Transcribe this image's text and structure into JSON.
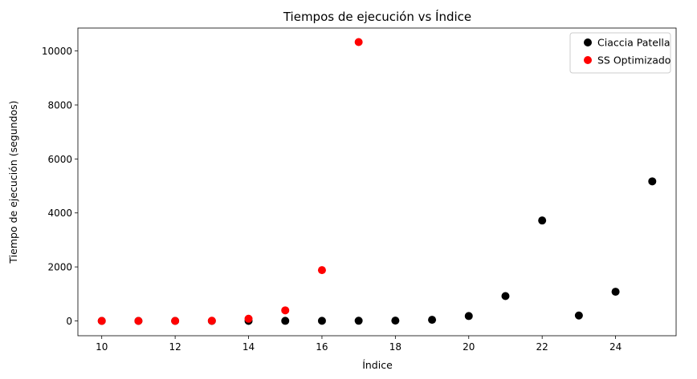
{
  "chart_data": {
    "type": "scatter",
    "title": "Tiempos de ejecución vs Índice",
    "xlabel": "Índice",
    "ylabel": "Tiempo de ejecución (segundos)",
    "xlim": [
      9.35,
      25.65
    ],
    "ylim": [
      -550,
      10850
    ],
    "xticks": [
      10,
      12,
      14,
      16,
      18,
      20,
      22,
      24
    ],
    "yticks": [
      0,
      2000,
      4000,
      6000,
      8000,
      10000
    ],
    "legend_position": "upper right",
    "grid": false,
    "series": [
      {
        "name": "Ciaccia Patella",
        "color": "#000000",
        "x": [
          10,
          11,
          12,
          13,
          14,
          15,
          16,
          17,
          18,
          19,
          20,
          21,
          22,
          23,
          24,
          25
        ],
        "y": [
          0,
          0,
          0,
          0,
          1,
          2,
          3,
          5,
          10,
          40,
          180,
          920,
          3720,
          200,
          1080,
          5170
        ]
      },
      {
        "name": "SS Optimizado",
        "color": "#ff0000",
        "x": [
          10,
          11,
          12,
          13,
          14,
          15,
          16,
          17
        ],
        "y": [
          0,
          0,
          0,
          5,
          80,
          390,
          1880,
          10330
        ]
      }
    ]
  }
}
